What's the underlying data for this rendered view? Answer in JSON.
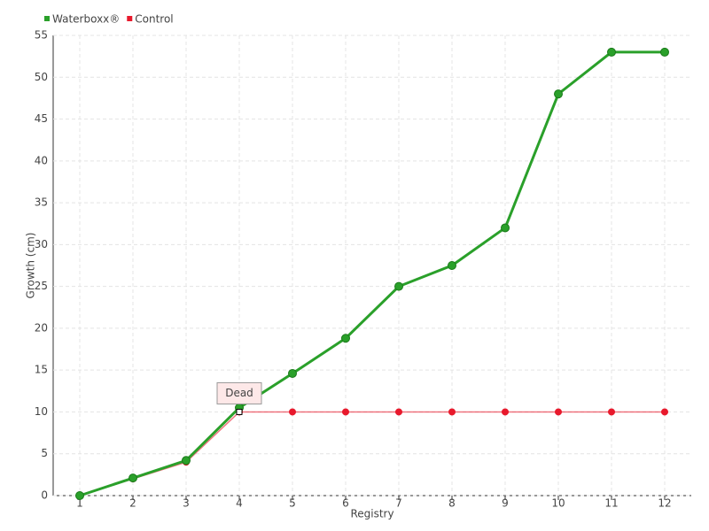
{
  "chart_data": {
    "type": "line",
    "x_label": "Registry",
    "y_label": "Growth (cm)",
    "categories": [
      "1",
      "2",
      "3",
      "4",
      "5",
      "6",
      "7",
      "8",
      "9",
      "10",
      "11",
      "12"
    ],
    "series": [
      {
        "name": "Waterboxx®",
        "color": "#2aa02a",
        "values": [
          0,
          2.1,
          4.2,
          10.5,
          14.6,
          18.8,
          25,
          27.5,
          32,
          48,
          53,
          53
        ]
      },
      {
        "name": "Control",
        "color": "#e8192c",
        "values": [
          0,
          2,
          4,
          10,
          10,
          10,
          10,
          10,
          10,
          10,
          10,
          10
        ]
      }
    ],
    "annotation": "Dead",
    "ylim": [
      0,
      55
    ],
    "yticks": [
      0,
      5,
      10,
      15,
      20,
      25,
      30,
      35,
      40,
      45,
      50,
      55
    ],
    "grid": true
  }
}
